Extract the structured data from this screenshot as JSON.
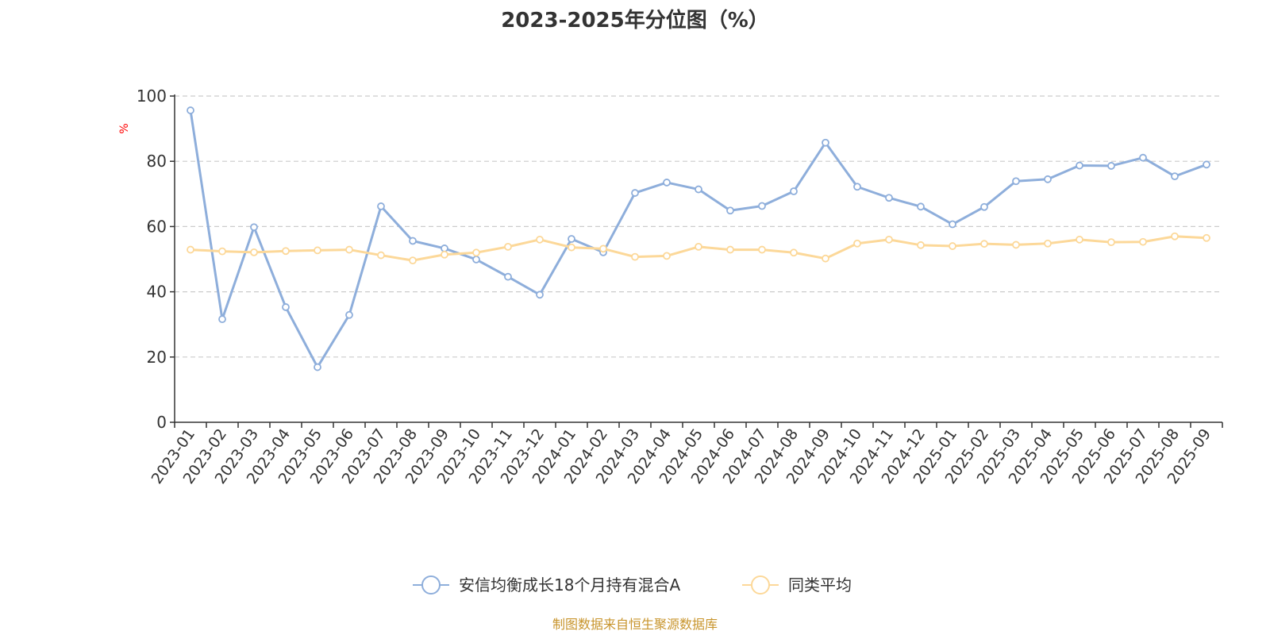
{
  "chart_data": {
    "type": "line",
    "title": "2023-2025年分位图（%）",
    "ylabel": "%",
    "xlabel": "",
    "ylim": [
      0,
      100
    ],
    "yticks": [
      0,
      20,
      40,
      60,
      80,
      100
    ],
    "grid": true,
    "legend_position": "bottom",
    "categories": [
      "2023-01",
      "2023-02",
      "2023-03",
      "2023-04",
      "2023-05",
      "2023-06",
      "2023-07",
      "2023-08",
      "2023-09",
      "2023-10",
      "2023-11",
      "2023-12",
      "2024-01",
      "2024-02",
      "2024-03",
      "2024-04",
      "2024-05",
      "2024-06",
      "2024-07",
      "2024-08",
      "2024-09",
      "2024-10",
      "2024-11",
      "2024-12",
      "2025-01",
      "2025-02",
      "2025-03",
      "2025-04",
      "2025-05",
      "2025-06",
      "2025-07",
      "2025-08",
      "2025-09"
    ],
    "series": [
      {
        "name": "安信均衡成长18个月持有混合A",
        "color": "#8eaedb",
        "values": [
          95.6,
          31.6,
          59.8,
          35.3,
          16.9,
          32.9,
          66.2,
          55.6,
          53.3,
          49.9,
          44.6,
          39.1,
          56.2,
          52.1,
          70.3,
          73.5,
          71.4,
          64.9,
          66.3,
          70.8,
          85.7,
          72.2,
          68.8,
          66.1,
          60.7,
          66.0,
          73.9,
          74.5,
          78.7,
          78.6,
          81.1,
          75.4,
          79.0
        ]
      },
      {
        "name": "同类平均",
        "color": "#fcd899",
        "values": [
          52.9,
          52.4,
          52.1,
          52.5,
          52.7,
          52.9,
          51.2,
          49.6,
          51.4,
          52.0,
          53.8,
          56.0,
          53.6,
          53.2,
          50.7,
          51.0,
          53.8,
          52.9,
          52.9,
          52.0,
          50.2,
          54.8,
          56.0,
          54.3,
          54.0,
          54.7,
          54.4,
          54.8,
          56.0,
          55.2,
          55.3,
          57.0,
          56.5
        ]
      }
    ]
  },
  "source": {
    "text": "制图数据来自恒生聚源数据库",
    "color": "#c8952d"
  },
  "colors": {
    "axis": "#333333",
    "grid": "#cccccc",
    "unit_label": "#ff0000"
  }
}
